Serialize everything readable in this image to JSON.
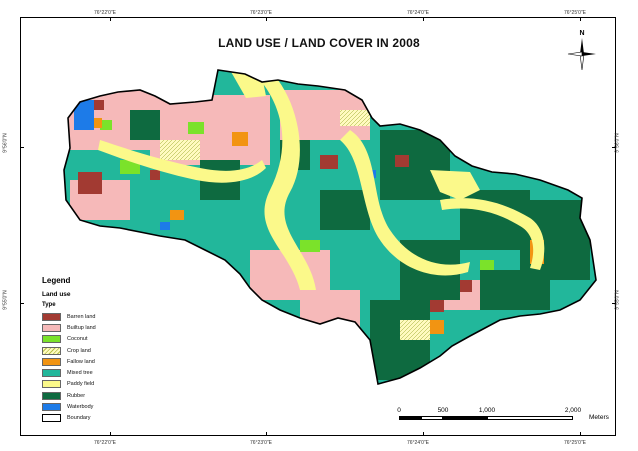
{
  "map": {
    "title": "LAND USE / LAND COVER IN 2008",
    "north_label": "N",
    "graticule": {
      "top": [
        "76°22'0\"E",
        "76°23'0\"E",
        "76°24'0\"E",
        "76°25'0\"E"
      ],
      "bottom": [
        "76°22'0\"E",
        "76°23'0\"E",
        "76°24'0\"E",
        "76°25'0\"E"
      ],
      "left": [
        "9°56'0\"N",
        "9°55'0\"N"
      ],
      "right": [
        "9°56'0\"N",
        "9°55'0\"N"
      ]
    }
  },
  "legend": {
    "title": "Legend",
    "subtitle": "Land use",
    "type_label": "Type",
    "items": [
      {
        "label": "Barren land",
        "color": "#a23a32"
      },
      {
        "label": "Builtup land",
        "color": "#f6b9b9"
      },
      {
        "label": "Coconut",
        "color": "#7be22a"
      },
      {
        "label": "Crop land",
        "color": "#fffbc0"
      },
      {
        "label": "Fallow land",
        "color": "#f29412"
      },
      {
        "label": "Mixed tree",
        "color": "#22b79b"
      },
      {
        "label": "Paddy field",
        "color": "#fbf98a"
      },
      {
        "label": "Rubber",
        "color": "#0e6a40"
      },
      {
        "label": "Waterbody",
        "color": "#1d7be8"
      },
      {
        "label": "Boundary",
        "color": "#ffffff"
      }
    ]
  },
  "scalebar": {
    "labels": [
      "0",
      "500",
      "1,000",
      "2,000"
    ],
    "unit": "Meters"
  }
}
